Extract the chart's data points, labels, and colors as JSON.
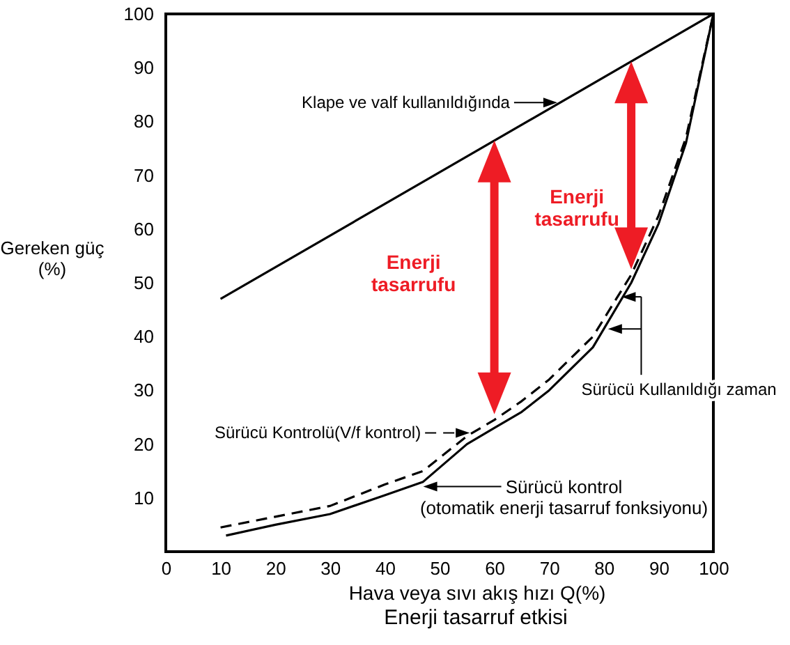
{
  "chart_data": {
    "type": "line",
    "title": "Enerji tasarruf etkisi",
    "xlabel": "Hava veya sıvı akış hızı Q(%)",
    "ylabel": "Gereken güç\n(%)",
    "xlim": [
      0,
      100
    ],
    "xticks": [
      0,
      10,
      20,
      30,
      40,
      50,
      60,
      70,
      80,
      90,
      100
    ],
    "ylim": [
      0,
      100
    ],
    "yticks": [
      10,
      20,
      30,
      40,
      50,
      60,
      70,
      80,
      90,
      100
    ],
    "grid": false,
    "marker": "none",
    "legend": "top left",
    "series": [
      {
        "name": "Klape ve valf kullanıldığında",
        "color": "#000000",
        "line_style": "solid",
        "x": [
          10,
          100
        ],
        "values": [
          47,
          100
        ]
      },
      {
        "name": "Sürücü Kontrolü(V/f kontrol)",
        "color": "#000000",
        "line_style": "dashed",
        "x": [
          10,
          20,
          30,
          40,
          47,
          55,
          60,
          65,
          70,
          78,
          85,
          90,
          95,
          100
        ],
        "values": [
          4.5,
          6.5,
          8.5,
          12.5,
          15,
          21.5,
          24.5,
          28,
          32,
          40,
          51.5,
          62.5,
          77,
          100
        ]
      },
      {
        "name": "Sürücü kontrol\n(otomatik enerji tasarruf fonksiyonu)",
        "color": "#000000",
        "line_style": "solid",
        "x": [
          11,
          20,
          30,
          40,
          47,
          55,
          60,
          65,
          70,
          78,
          85,
          90,
          95,
          100
        ],
        "values": [
          3,
          5,
          7,
          10.5,
          13,
          20,
          23,
          26,
          30,
          38,
          50,
          61,
          76,
          100
        ]
      }
    ],
    "annotations": [
      "Enerji\ntasarrufu",
      "Enerji\ntasarrufu",
      "Sürücü Kullanıldığı zaman"
    ]
  }
}
